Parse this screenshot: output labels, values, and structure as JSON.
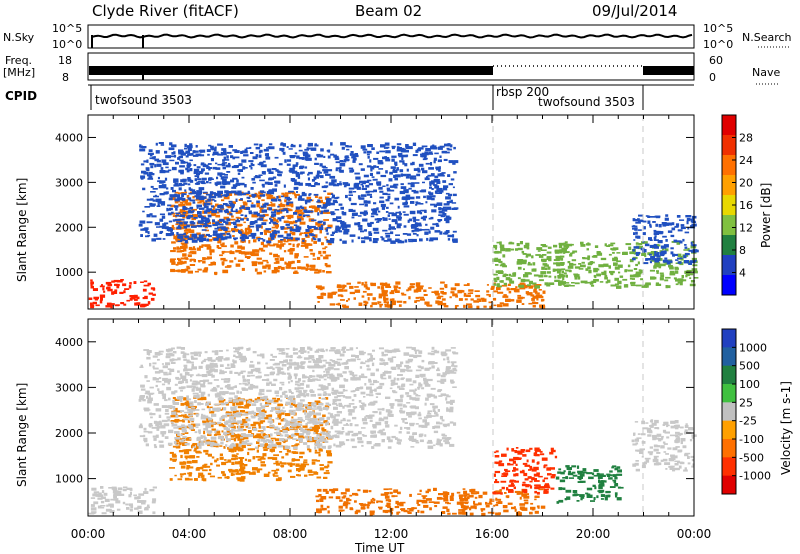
{
  "header": {
    "station": "Clyde River (fitACF)",
    "beam": "Beam 02",
    "date": "09/Jul/2014"
  },
  "strips": {
    "nsky_label": "N.Sky",
    "nsky_ticks": [
      "10^5",
      "10^0"
    ],
    "nsearch_label": "N.Search",
    "nsearch_ticks": [
      "10^5",
      "10^0"
    ],
    "freq_label": "Freq.",
    "freq_unit": "[MHz]",
    "freq_ticks": [
      "18",
      "8"
    ],
    "nave_label": "Nave",
    "nave_ticks": [
      "60",
      "0"
    ],
    "cpid_label": "CPID",
    "cpid_segments": [
      {
        "label": "twofsound 3503",
        "start_hour": 0,
        "end_hour": 16
      },
      {
        "label": "rbsp 200",
        "start_hour": 16,
        "end_hour": 22
      },
      {
        "label": "twofsound 3503",
        "start_hour": 22,
        "end_hour": 24
      }
    ]
  },
  "chart_data": [
    {
      "type": "heatmap",
      "name": "Power",
      "ylabel": "Slant Range [km]",
      "y_ticks": [
        "4000",
        "3000",
        "2000",
        "1000"
      ],
      "ylim": [
        180,
        4500
      ],
      "xlim": [
        0,
        24
      ],
      "colorbar_label": "Power [dB]",
      "colorbar_ticks": [
        "28",
        "24",
        "20",
        "16",
        "12",
        "8",
        "4"
      ],
      "colorbar_colors": [
        "#e00000",
        "#f03000",
        "#ff7000",
        "#ffa000",
        "#e8d800",
        "#80c040",
        "#208040",
        "#2040c0",
        "#0000ff"
      ],
      "bands": [
        {
          "t0": 0.0,
          "t1": 2.6,
          "r0": 250,
          "r1": 850,
          "color": "#ff2000"
        },
        {
          "t0": 3.2,
          "t1": 9.5,
          "r0": 1000,
          "r1": 2800,
          "color": "#f07000"
        },
        {
          "t0": 2.0,
          "t1": 14.5,
          "r0": 1700,
          "r1": 3900,
          "color": "#2050c0"
        },
        {
          "t0": 9.0,
          "t1": 18.0,
          "r0": 250,
          "r1": 800,
          "color": "#f07000"
        },
        {
          "t0": 16.0,
          "t1": 24.0,
          "r0": 700,
          "r1": 1700,
          "color": "#70b040"
        },
        {
          "t0": 21.5,
          "t1": 24.0,
          "r0": 1200,
          "r1": 2300,
          "color": "#2050c0"
        }
      ]
    },
    {
      "type": "heatmap",
      "name": "Velocity",
      "ylabel": "Slant Range [km]",
      "y_ticks": [
        "4000",
        "3000",
        "2000",
        "1000"
      ],
      "ylim": [
        180,
        4500
      ],
      "xlim": [
        0,
        24
      ],
      "xlabel": "Time UT",
      "x_ticks": [
        "00:00",
        "04:00",
        "08:00",
        "12:00",
        "16:00",
        "20:00",
        "00:00"
      ],
      "colorbar_label": "Velocity [m s-1]",
      "colorbar_ticks": [
        "1000",
        "500",
        "100",
        "25",
        "-25",
        "-100",
        "-500",
        "-1000"
      ],
      "colorbar_colors": [
        "#2040c0",
        "#2060a0",
        "#208040",
        "#40c040",
        "#c0c0c0",
        "#ffa000",
        "#ff7000",
        "#ff3000",
        "#e00000"
      ],
      "bands": [
        {
          "t0": 0.0,
          "t1": 2.6,
          "r0": 250,
          "r1": 850,
          "color": "#c8c8c8"
        },
        {
          "t0": 3.2,
          "t1": 9.5,
          "r0": 1000,
          "r1": 2800,
          "color": "#f08000"
        },
        {
          "t0": 2.0,
          "t1": 14.5,
          "r0": 1700,
          "r1": 3900,
          "color": "#c8c8c8"
        },
        {
          "t0": 9.0,
          "t1": 18.0,
          "r0": 250,
          "r1": 800,
          "color": "#f07000"
        },
        {
          "t0": 16.0,
          "t1": 18.5,
          "r0": 700,
          "r1": 1700,
          "color": "#ff3000"
        },
        {
          "t0": 18.5,
          "t1": 21.0,
          "r0": 500,
          "r1": 1300,
          "color": "#208040"
        },
        {
          "t0": 21.5,
          "t1": 24.0,
          "r0": 1200,
          "r1": 2300,
          "color": "#c8c8c8"
        }
      ]
    }
  ]
}
